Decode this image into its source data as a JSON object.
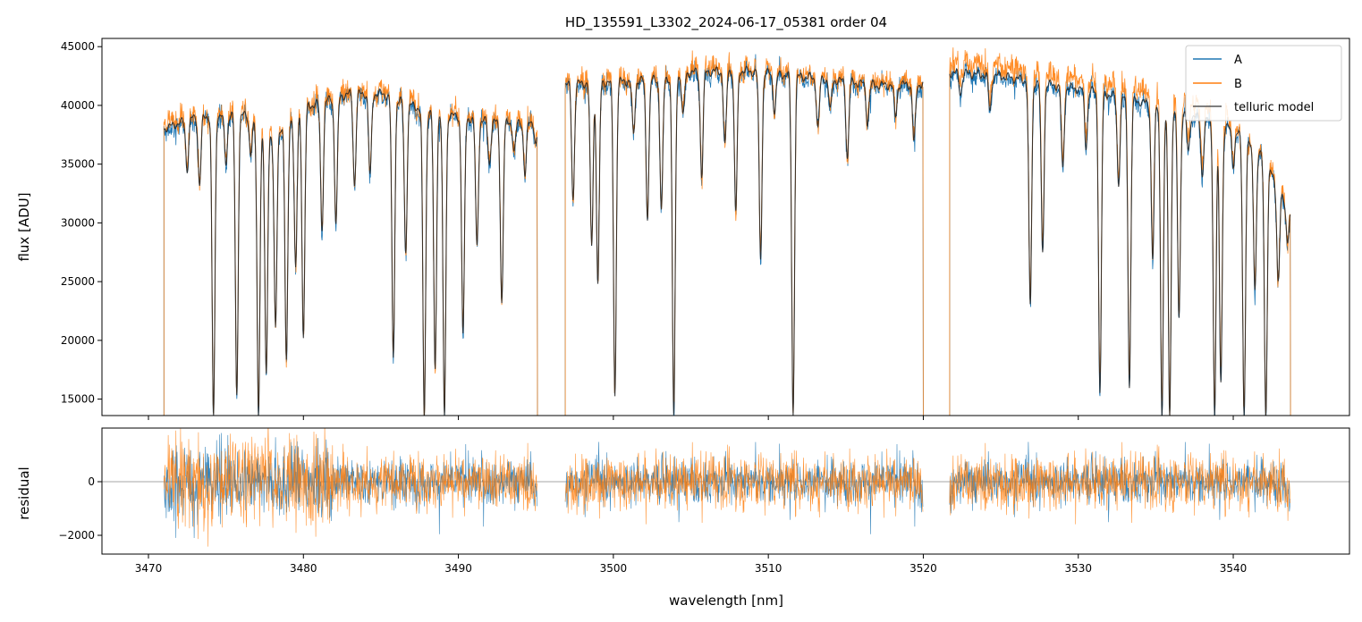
{
  "figure": {
    "title": "HD_135591_L3302_2024-06-17_05381  order 04"
  },
  "colors": {
    "A": "#1f77b4",
    "B": "#ff7f0e",
    "telluric": "#222222",
    "zero_line": "#888888"
  },
  "chart_data": [
    {
      "type": "line",
      "title": "HD_135591_L3302_2024-06-17_05381  order 04",
      "xlabel": "",
      "ylabel": "flux [ADU]",
      "xlim": [
        3467,
        3547.5
      ],
      "ylim": [
        13600,
        45700
      ],
      "x_ticks": [
        3470,
        3480,
        3490,
        3500,
        3510,
        3520,
        3530,
        3540
      ],
      "y_ticks": [
        15000,
        20000,
        25000,
        30000,
        35000,
        40000,
        45000
      ],
      "y_tick_labels": [
        "15000",
        "20000",
        "25000",
        "30000",
        "35000",
        "40000",
        "45000"
      ],
      "legend": {
        "placement": "top-right",
        "entries": [
          "A",
          "B",
          "telluric model"
        ]
      },
      "segments": [
        [
          3471.0,
          3495.1
        ],
        [
          3496.9,
          3520.0
        ],
        [
          3521.7,
          3543.7
        ]
      ],
      "continuum": [
        [
          3471.0,
          38000
        ],
        [
          3473.0,
          39000
        ],
        [
          3476.0,
          39300
        ],
        [
          3478.0,
          37500
        ],
        [
          3480.0,
          39800
        ],
        [
          3483.0,
          41000
        ],
        [
          3485.0,
          41000
        ],
        [
          3488.0,
          39500
        ],
        [
          3491.0,
          38800
        ],
        [
          3493.0,
          38500
        ],
        [
          3495.1,
          38700
        ],
        [
          3496.9,
          41800
        ],
        [
          3500.0,
          42000
        ],
        [
          3503.0,
          42200
        ],
        [
          3505.0,
          42800
        ],
        [
          3508.0,
          43000
        ],
        [
          3511.0,
          42600
        ],
        [
          3514.0,
          42200
        ],
        [
          3517.0,
          41700
        ],
        [
          3520.0,
          41800
        ],
        [
          3521.7,
          42800
        ],
        [
          3525.0,
          42500
        ],
        [
          3528.0,
          41800
        ],
        [
          3531.0,
          41200
        ],
        [
          3534.0,
          40300
        ],
        [
          3537.0,
          39300
        ],
        [
          3540.0,
          38000
        ],
        [
          3542.0,
          35500
        ],
        [
          3543.7,
          30800
        ]
      ],
      "lines": [
        [
          3472.5,
          34500
        ],
        [
          3473.3,
          33200
        ],
        [
          3474.2,
          13600
        ],
        [
          3475.0,
          35000
        ],
        [
          3475.7,
          15300
        ],
        [
          3476.6,
          36000
        ],
        [
          3477.1,
          13600
        ],
        [
          3477.6,
          17000
        ],
        [
          3478.2,
          21000
        ],
        [
          3478.9,
          18200
        ],
        [
          3479.5,
          26000
        ],
        [
          3480.0,
          20200
        ],
        [
          3481.2,
          29500
        ],
        [
          3482.1,
          30000
        ],
        [
          3483.3,
          33200
        ],
        [
          3484.3,
          34000
        ],
        [
          3485.8,
          18500
        ],
        [
          3486.6,
          27500
        ],
        [
          3487.8,
          13600
        ],
        [
          3488.5,
          17500
        ],
        [
          3489.1,
          13600
        ],
        [
          3490.3,
          20500
        ],
        [
          3491.2,
          28000
        ],
        [
          3492.0,
          35000
        ],
        [
          3492.8,
          23200
        ],
        [
          3493.6,
          36000
        ],
        [
          3494.3,
          34000
        ],
        [
          3495.0,
          36500
        ],
        [
          3497.4,
          32000
        ],
        [
          3498.6,
          28000
        ],
        [
          3499.0,
          24800
        ],
        [
          3500.1,
          15300
        ],
        [
          3501.3,
          37500
        ],
        [
          3502.2,
          30500
        ],
        [
          3503.1,
          31000
        ],
        [
          3503.9,
          13600
        ],
        [
          3504.5,
          39000
        ],
        [
          3505.7,
          34000
        ],
        [
          3507.2,
          36500
        ],
        [
          3507.9,
          31000
        ],
        [
          3509.5,
          27000
        ],
        [
          3510.4,
          39500
        ],
        [
          3511.6,
          13600
        ],
        [
          3513.2,
          38000
        ],
        [
          3514.0,
          39500
        ],
        [
          3515.1,
          35500
        ],
        [
          3516.4,
          38500
        ],
        [
          3518.2,
          39000
        ],
        [
          3519.4,
          36800
        ],
        [
          3522.4,
          41000
        ],
        [
          3524.3,
          39500
        ],
        [
          3526.9,
          23000
        ],
        [
          3527.7,
          27500
        ],
        [
          3529.0,
          34500
        ],
        [
          3530.5,
          36500
        ],
        [
          3531.4,
          15500
        ],
        [
          3532.6,
          33300
        ],
        [
          3533.3,
          16000
        ],
        [
          3534.8,
          27000
        ],
        [
          3535.4,
          13600
        ],
        [
          3535.9,
          13600
        ],
        [
          3536.5,
          22000
        ],
        [
          3537.1,
          36000
        ],
        [
          3538.0,
          34000
        ],
        [
          3538.8,
          13600
        ],
        [
          3539.2,
          16500
        ],
        [
          3540.0,
          35000
        ],
        [
          3540.7,
          13600
        ],
        [
          3541.4,
          24500
        ],
        [
          3542.1,
          13600
        ],
        [
          3542.9,
          25000
        ],
        [
          3543.5,
          28500
        ]
      ]
    },
    {
      "type": "line",
      "title": "",
      "xlabel": "wavelength [nm]",
      "ylabel": "residual",
      "xlim": [
        3467,
        3547.5
      ],
      "ylim": [
        -2700,
        2000
      ],
      "x_ticks": [
        3470,
        3480,
        3490,
        3500,
        3510,
        3520,
        3530,
        3540
      ],
      "x_tick_labels": [
        "3470",
        "3480",
        "3490",
        "3500",
        "3510",
        "3520",
        "3530",
        "3540"
      ],
      "y_ticks": [
        -2000,
        0
      ],
      "y_tick_labels": [
        "−2000",
        "0"
      ],
      "zero_line": 0
    }
  ]
}
